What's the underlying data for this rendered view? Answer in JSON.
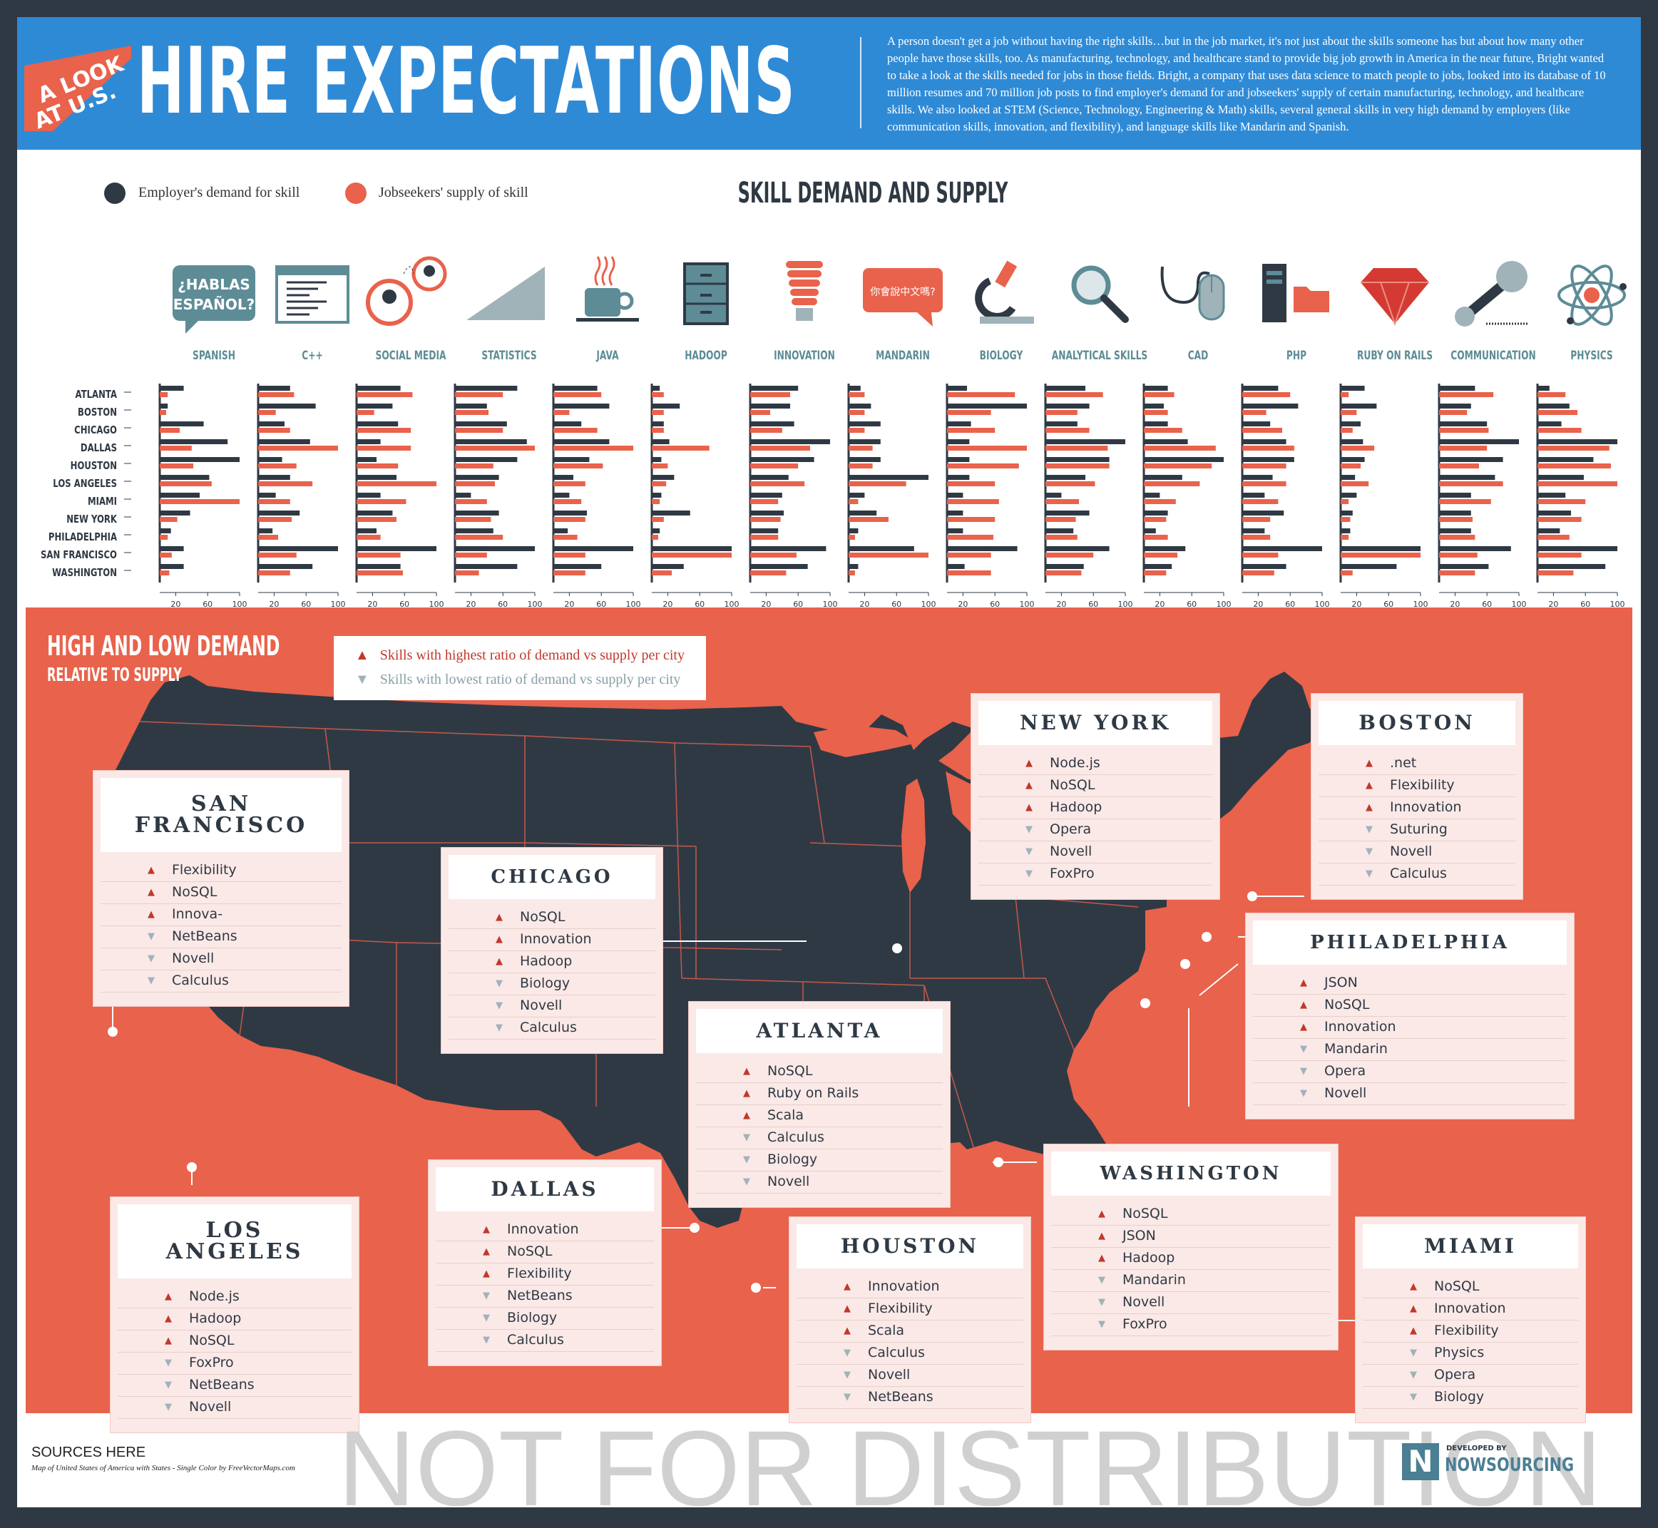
{
  "header": {
    "banner_line1": "A LOOK",
    "banner_line2": "AT U.S.",
    "title": "HIRE EXPECTATIONS",
    "intro": "A person doesn't get a job without having the right skills…but in the job market, it's not just about the skills someone has but about how many other people have those skills, too. As manufacturing, technology, and healthcare stand to provide big job growth in America in the near future, Bright wanted to take a look at the skills needed for jobs in those fields. Bright, a company that uses data science to match people to jobs, looked into its database of 10 million resumes and 70 million job posts to find employer's demand for and jobseekers' supply of certain manufacturing, technology, and healthcare skills. We also looked at STEM (Science, Technology, Engineering & Math) skills, several general skills in very high demand by employers (like communication skills, innovation, and flexibility), and language skills like Mandarin and Spanish."
  },
  "legend": {
    "demand_label": "Employer's demand for skill",
    "supply_label": "Jobseekers' supply of skill",
    "demand_color": "#2f3944",
    "supply_color": "#e9624b"
  },
  "chart_data": {
    "type": "bar",
    "title": "SKILL DEMAND AND SUPPLY",
    "orientation": "horizontal",
    "cities": [
      "ATLANTA",
      "BOSTON",
      "CHICAGO",
      "DALLAS",
      "HOUSTON",
      "LOS ANGELES",
      "MIAMI",
      "NEW YORK",
      "PHILADELPHIA",
      "SAN FRANCISCO",
      "WASHINGTON"
    ],
    "xticks": [
      20,
      60,
      100
    ],
    "xlim": [
      0,
      100
    ],
    "series_names": [
      "Employer's demand for skill",
      "Jobseekers' supply of skill"
    ],
    "panels": [
      {
        "skill": "SPANISH",
        "icon": "spanish-speech-icon",
        "icon_text": "¿HABLAS ESPAÑOL?",
        "demand": [
          30,
          10,
          55,
          85,
          100,
          62,
          50,
          38,
          14,
          30,
          30
        ],
        "supply": [
          10,
          8,
          25,
          40,
          42,
          65,
          100,
          22,
          10,
          15,
          12
        ]
      },
      {
        "skill": "C++",
        "icon": "code-window-icon",
        "demand": [
          40,
          72,
          33,
          65,
          30,
          40,
          22,
          52,
          18,
          100,
          68
        ],
        "supply": [
          45,
          22,
          40,
          100,
          48,
          68,
          40,
          42,
          25,
          48,
          40
        ]
      },
      {
        "skill": "SOCIAL MEDIA",
        "icon": "social-media-icon",
        "demand": [
          55,
          45,
          52,
          30,
          25,
          50,
          30,
          45,
          25,
          100,
          55
        ],
        "supply": [
          70,
          22,
          68,
          68,
          52,
          100,
          62,
          50,
          30,
          55,
          58
        ]
      },
      {
        "skill": "STATISTICS",
        "icon": "statistics-icon",
        "demand": [
          78,
          40,
          65,
          90,
          78,
          55,
          20,
          55,
          48,
          100,
          78
        ],
        "supply": [
          60,
          42,
          60,
          100,
          48,
          50,
          40,
          45,
          60,
          40,
          30
        ]
      },
      {
        "skill": "JAVA",
        "icon": "coffee-cup-icon",
        "demand": [
          55,
          70,
          35,
          70,
          45,
          25,
          20,
          42,
          18,
          100,
          60
        ],
        "supply": [
          60,
          20,
          55,
          100,
          62,
          40,
          35,
          40,
          30,
          40,
          40
        ]
      },
      {
        "skill": "HADOOP",
        "icon": "filing-cabinet-icon",
        "demand": [
          10,
          35,
          15,
          22,
          12,
          28,
          12,
          48,
          10,
          100,
          40
        ],
        "supply": [
          15,
          15,
          15,
          72,
          20,
          18,
          10,
          15,
          8,
          100,
          25
        ]
      },
      {
        "skill": "INNOVATION",
        "icon": "lightbulb-icon",
        "demand": [
          60,
          50,
          55,
          100,
          80,
          48,
          40,
          42,
          35,
          95,
          72
        ],
        "supply": [
          50,
          25,
          40,
          75,
          60,
          68,
          35,
          38,
          35,
          58,
          45
        ]
      },
      {
        "skill": "MANDARIN",
        "icon": "mandarin-speech-icon",
        "icon_text": "你會說中文嗎?",
        "demand": [
          15,
          28,
          40,
          40,
          40,
          100,
          20,
          35,
          12,
          82,
          12
        ],
        "supply": [
          20,
          20,
          20,
          30,
          30,
          72,
          12,
          50,
          8,
          100,
          8
        ]
      },
      {
        "skill": "BIOLOGY",
        "icon": "microscope-icon",
        "demand": [
          25,
          100,
          30,
          28,
          28,
          28,
          20,
          20,
          20,
          88,
          22
        ],
        "supply": [
          85,
          55,
          60,
          100,
          90,
          60,
          65,
          60,
          58,
          55,
          55
        ]
      },
      {
        "skill": "ANALYTICAL SKILLS",
        "icon": "magnifier-icon",
        "demand": [
          50,
          55,
          40,
          100,
          80,
          50,
          20,
          55,
          35,
          80,
          48
        ],
        "supply": [
          72,
          40,
          55,
          78,
          80,
          62,
          42,
          38,
          40,
          60,
          45
        ]
      },
      {
        "skill": "CAD",
        "icon": "mouse-icon",
        "demand": [
          30,
          25,
          30,
          55,
          100,
          48,
          20,
          30,
          15,
          52,
          35
        ],
        "supply": [
          38,
          30,
          48,
          90,
          85,
          70,
          40,
          28,
          30,
          42,
          28
        ]
      },
      {
        "skill": "PHP",
        "icon": "server-folder-icon",
        "demand": [
          45,
          70,
          35,
          55,
          65,
          38,
          28,
          52,
          28,
          100,
          55
        ],
        "supply": [
          60,
          30,
          50,
          65,
          55,
          55,
          45,
          35,
          35,
          45,
          40
        ]
      },
      {
        "skill": "RUBY ON RAILS",
        "icon": "ruby-gem-icon",
        "demand": [
          30,
          45,
          25,
          28,
          30,
          18,
          20,
          15,
          12,
          100,
          70
        ],
        "supply": [
          10,
          20,
          15,
          42,
          25,
          35,
          10,
          12,
          10,
          100,
          15
        ]
      },
      {
        "skill": "COMMUNICATION",
        "icon": "microphone-icon",
        "demand": [
          45,
          40,
          60,
          100,
          80,
          70,
          40,
          40,
          40,
          90,
          62
        ],
        "supply": [
          68,
          35,
          62,
          60,
          50,
          80,
          65,
          42,
          45,
          48,
          45
        ]
      },
      {
        "skill": "PHYSICS",
        "icon": "atom-icon",
        "demand": [
          15,
          40,
          30,
          100,
          70,
          58,
          35,
          42,
          28,
          100,
          85
        ],
        "supply": [
          35,
          50,
          55,
          90,
          92,
          100,
          60,
          55,
          40,
          55,
          45
        ]
      }
    ]
  },
  "lower": {
    "title": "HIGH AND LOW DEMAND",
    "subtitle": "RELATIVE TO SUPPLY",
    "legend_high": "Skills with highest ratio of demand vs supply per city",
    "legend_low": "Skills with lowest ratio of demand vs supply per city",
    "map_color": "#2f3944",
    "cities": [
      {
        "id": "san-francisco",
        "name_line1": "SAN",
        "name_line2": "FRANCISCO",
        "items": [
          {
            "dir": "up",
            "label": "Flexibility"
          },
          {
            "dir": "up",
            "label": "NoSQL"
          },
          {
            "dir": "up",
            "label": "Innova-"
          },
          {
            "dir": "down",
            "label": "NetBeans"
          },
          {
            "dir": "down",
            "label": "Novell"
          },
          {
            "dir": "down",
            "label": "Calculus"
          }
        ]
      },
      {
        "id": "chicago",
        "name_line1": "CHICAGO",
        "name_line2": "",
        "items": [
          {
            "dir": "up",
            "label": "NoSQL"
          },
          {
            "dir": "up",
            "label": "Innovation"
          },
          {
            "dir": "up",
            "label": "Hadoop"
          },
          {
            "dir": "down",
            "label": "Biology"
          },
          {
            "dir": "down",
            "label": "Novell"
          },
          {
            "dir": "down",
            "label": "Calculus"
          }
        ]
      },
      {
        "id": "new-york",
        "name_line1": "NEW YORK",
        "name_line2": "",
        "items": [
          {
            "dir": "up",
            "label": "Node.js"
          },
          {
            "dir": "up",
            "label": "NoSQL"
          },
          {
            "dir": "up",
            "label": "Hadoop"
          },
          {
            "dir": "down",
            "label": "Opera"
          },
          {
            "dir": "down",
            "label": "Novell"
          },
          {
            "dir": "down",
            "label": "FoxPro"
          }
        ]
      },
      {
        "id": "boston",
        "name_line1": "BOSTON",
        "name_line2": "",
        "items": [
          {
            "dir": "up",
            "label": ".net"
          },
          {
            "dir": "up",
            "label": "Flexibility"
          },
          {
            "dir": "up",
            "label": "Innovation"
          },
          {
            "dir": "down",
            "label": "Suturing"
          },
          {
            "dir": "down",
            "label": "Novell"
          },
          {
            "dir": "down",
            "label": "Calculus"
          }
        ]
      },
      {
        "id": "philadelphia",
        "name_line1": "PHILADELPHIA",
        "name_line2": "",
        "items": [
          {
            "dir": "up",
            "label": "JSON"
          },
          {
            "dir": "up",
            "label": "NoSQL"
          },
          {
            "dir": "up",
            "label": "Innovation"
          },
          {
            "dir": "down",
            "label": "Mandarin"
          },
          {
            "dir": "down",
            "label": "Opera"
          },
          {
            "dir": "down",
            "label": "Novell"
          }
        ]
      },
      {
        "id": "atlanta",
        "name_line1": "ATLANTA",
        "name_line2": "",
        "items": [
          {
            "dir": "up",
            "label": "NoSQL"
          },
          {
            "dir": "up",
            "label": "Ruby on Rails"
          },
          {
            "dir": "up",
            "label": "Scala"
          },
          {
            "dir": "down",
            "label": "Calculus"
          },
          {
            "dir": "down",
            "label": "Biology"
          },
          {
            "dir": "down",
            "label": "Novell"
          }
        ]
      },
      {
        "id": "los-angeles",
        "name_line1": "LOS",
        "name_line2": "ANGELES",
        "items": [
          {
            "dir": "up",
            "label": "Node.js"
          },
          {
            "dir": "up",
            "label": "Hadoop"
          },
          {
            "dir": "up",
            "label": "NoSQL"
          },
          {
            "dir": "down",
            "label": "FoxPro"
          },
          {
            "dir": "down",
            "label": "NetBeans"
          },
          {
            "dir": "down",
            "label": "Novell"
          }
        ]
      },
      {
        "id": "dallas",
        "name_line1": "DALLAS",
        "name_line2": "",
        "items": [
          {
            "dir": "up",
            "label": "Innovation"
          },
          {
            "dir": "up",
            "label": "NoSQL"
          },
          {
            "dir": "up",
            "label": "Flexibility"
          },
          {
            "dir": "down",
            "label": "NetBeans"
          },
          {
            "dir": "down",
            "label": "Biology"
          },
          {
            "dir": "down",
            "label": "Calculus"
          }
        ]
      },
      {
        "id": "houston",
        "name_line1": "HOUSTON",
        "name_line2": "",
        "items": [
          {
            "dir": "up",
            "label": "Innovation"
          },
          {
            "dir": "up",
            "label": "Flexibility"
          },
          {
            "dir": "up",
            "label": "Scala"
          },
          {
            "dir": "down",
            "label": "Calculus"
          },
          {
            "dir": "down",
            "label": "Novell"
          },
          {
            "dir": "down",
            "label": "NetBeans"
          }
        ]
      },
      {
        "id": "washington",
        "name_line1": "WASHINGTON",
        "name_line2": "",
        "items": [
          {
            "dir": "up",
            "label": "NoSQL"
          },
          {
            "dir": "up",
            "label": "JSON"
          },
          {
            "dir": "up",
            "label": "Hadoop"
          },
          {
            "dir": "down",
            "label": "Mandarin"
          },
          {
            "dir": "down",
            "label": "Novell"
          },
          {
            "dir": "down",
            "label": "FoxPro"
          }
        ]
      },
      {
        "id": "miami",
        "name_line1": "MIAMI",
        "name_line2": "",
        "items": [
          {
            "dir": "up",
            "label": "NoSQL"
          },
          {
            "dir": "up",
            "label": "Innovation"
          },
          {
            "dir": "up",
            "label": "Flexibility"
          },
          {
            "dir": "down",
            "label": "Physics"
          },
          {
            "dir": "down",
            "label": "Opera"
          },
          {
            "dir": "down",
            "label": "Biology"
          }
        ]
      }
    ]
  },
  "footer": {
    "sources_title": "SOURCES HERE",
    "sources_note": "Map of United States of America with States - Single Color by FreeVectorMaps.com",
    "watermark": "NOT FOR DISTRIBUTION",
    "developed_by": "DEVELOPED BY",
    "developer": "NOWSOURCING",
    "developer_logo_letter": "N"
  }
}
